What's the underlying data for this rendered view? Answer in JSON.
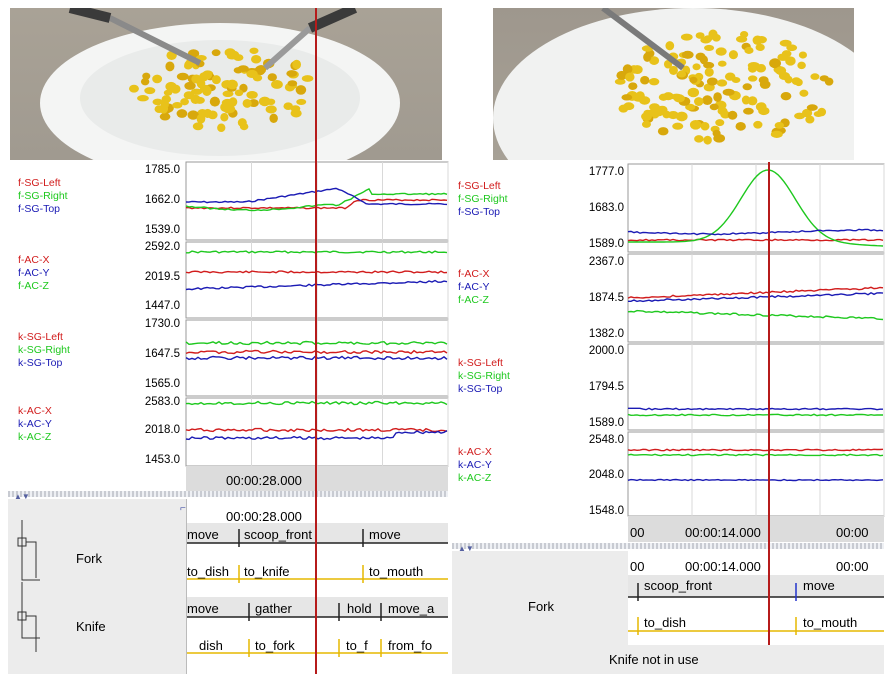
{
  "colors": {
    "red": "#d11c1c",
    "green": "#1ec81e",
    "blue": "#1a1ab4",
    "cursor": "#b61b1b",
    "timeline": "#e6b800",
    "panel": "#ececec"
  },
  "left": {
    "groups": [
      {
        "labels": [
          "f-SG-Left",
          "f-SG-Right",
          "f-SG-Top"
        ],
        "ticks": [
          "1785.0",
          "1662.0",
          "1539.0"
        ]
      },
      {
        "labels": [
          "f-AC-X",
          "f-AC-Y",
          "f-AC-Z"
        ],
        "ticks": [
          "2592.0",
          "2019.5",
          "1447.0"
        ]
      },
      {
        "labels": [
          "k-SG-Left",
          "k-SG-Right",
          "k-SG-Top"
        ],
        "ticks": [
          "1730.0",
          "1647.5",
          "1565.0"
        ]
      },
      {
        "labels": [
          "k-AC-X",
          "k-AC-Y",
          "k-AC-Z"
        ],
        "ticks": [
          "2583.0",
          "2018.0",
          "1453.0"
        ]
      }
    ],
    "time_label": "00:00:28.000",
    "annot_time": "00:00:28.000",
    "tracks": [
      "Fork",
      "Knife"
    ],
    "fork_row1": [
      "move",
      "scoop_front",
      "move"
    ],
    "fork_row2": [
      "to_dish",
      "to_knife",
      "to_mouth"
    ],
    "knife_row1": [
      "move",
      "gather",
      "hold",
      "move_a"
    ],
    "knife_row2": [
      "dish",
      "to_fork",
      "to_f",
      "from_fo"
    ]
  },
  "right": {
    "groups": [
      {
        "labels": [
          "f-SG-Left",
          "f-SG-Right",
          "f-SG-Top"
        ],
        "ticks": [
          "1777.0",
          "1683.0",
          "1589.0"
        ]
      },
      {
        "labels": [
          "f-AC-X",
          "f-AC-Y",
          "f-AC-Z"
        ],
        "ticks": [
          "2367.0",
          "1874.5",
          "1382.0"
        ]
      },
      {
        "labels": [
          "k-SG-Left",
          "k-SG-Right",
          "k-SG-Top"
        ],
        "ticks": [
          "2000.0",
          "1794.5",
          "1589.0"
        ]
      },
      {
        "labels": [
          "k-AC-X",
          "k-AC-Y",
          "k-AC-Z"
        ],
        "ticks": [
          "2548.0",
          "2048.0",
          "1548.0"
        ]
      }
    ],
    "time_prefix": "00",
    "time_label": "00:00:14.000",
    "time_suffix": "00:00",
    "annot_prefix": "00",
    "annot_time": "00:00:14.000",
    "annot_suffix": "00:00",
    "track": "Fork",
    "fork_row1": [
      "scoop_front",
      "move"
    ],
    "fork_row2": [
      "to_dish",
      "to_mouth"
    ],
    "knife_status": "Knife not in use"
  }
}
